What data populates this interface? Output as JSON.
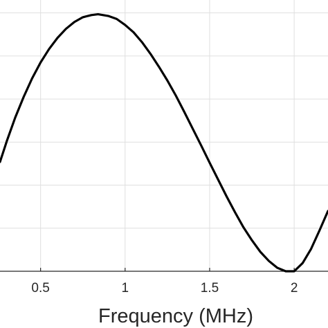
{
  "chart_data": {
    "type": "line",
    "title": "",
    "xlabel": "Frequency (MHz)",
    "ylabel": "",
    "xlim": [
      0.26,
      2.2
    ],
    "ylim": [
      0,
      6.3
    ],
    "x_ticks": [
      0.5,
      1,
      1.5,
      2
    ],
    "x_tick_labels": [
      "0.5",
      "1",
      "1.5",
      "2"
    ],
    "y_gridlines": [
      1,
      2,
      3,
      4,
      5,
      6
    ],
    "grid": true,
    "legend": "none",
    "series": [
      {
        "x": [
          0.26,
          0.3,
          0.35,
          0.4,
          0.45,
          0.5,
          0.55,
          0.6,
          0.65,
          0.7,
          0.75,
          0.8,
          0.84,
          0.9,
          0.95,
          1.0,
          1.05,
          1.1,
          1.15,
          1.2,
          1.25,
          1.3,
          1.35,
          1.4,
          1.45,
          1.5,
          1.55,
          1.6,
          1.65,
          1.7,
          1.75,
          1.8,
          1.85,
          1.9,
          1.95,
          2.0,
          2.05,
          2.1,
          2.15,
          2.2
        ],
        "values": [
          2.54,
          3.02,
          3.57,
          4.05,
          4.48,
          4.85,
          5.16,
          5.42,
          5.63,
          5.79,
          5.9,
          5.95,
          5.97,
          5.93,
          5.86,
          5.72,
          5.55,
          5.32,
          5.05,
          4.75,
          4.43,
          4.08,
          3.7,
          3.31,
          2.92,
          2.52,
          2.13,
          1.74,
          1.37,
          1.02,
          0.72,
          0.45,
          0.24,
          0.08,
          0.0,
          0.0,
          0.19,
          0.52,
          0.95,
          1.4
        ]
      }
    ],
    "colors": {
      "line": "#000000",
      "grid": "#dfdfdf",
      "axis": "#262626",
      "background": "#ffffff"
    }
  }
}
